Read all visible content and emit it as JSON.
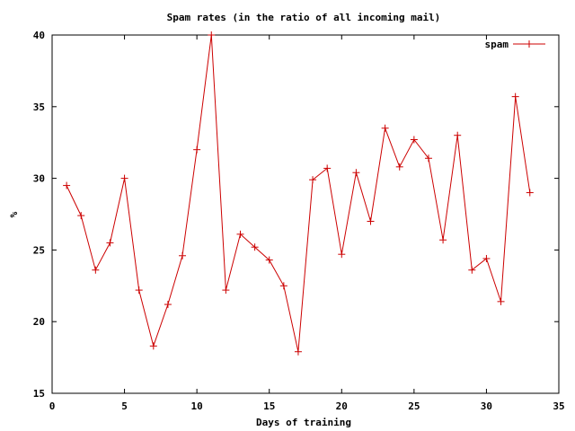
{
  "chart_data": {
    "type": "line",
    "title": "Spam rates (in the ratio of all incoming mail)",
    "xlabel": "Days of training",
    "ylabel": "%",
    "xlim": [
      0,
      35
    ],
    "ylim": [
      15,
      40
    ],
    "x_ticks": [
      "0",
      "5",
      "10",
      "15",
      "20",
      "25",
      "30",
      "35"
    ],
    "y_ticks": [
      "15",
      "20",
      "25",
      "30",
      "35",
      "40"
    ],
    "grid": false,
    "legend_position": "top-right",
    "series": [
      {
        "name": "spam",
        "color": "#cc0000",
        "marker": "plus",
        "x": [
          1,
          2,
          3,
          4,
          5,
          6,
          7,
          8,
          9,
          10,
          11,
          12,
          13,
          14,
          15,
          16,
          17,
          18,
          19,
          20,
          21,
          22,
          23,
          24,
          25,
          26,
          27,
          28,
          29,
          30,
          31,
          32,
          33
        ],
        "values": [
          29.5,
          27.4,
          23.6,
          25.5,
          30.0,
          22.2,
          18.3,
          21.2,
          24.6,
          32.0,
          40.0,
          22.2,
          26.1,
          25.2,
          24.3,
          22.5,
          17.9,
          29.9,
          30.7,
          24.7,
          30.4,
          27.0,
          33.5,
          30.8,
          32.7,
          31.4,
          25.7,
          33.0,
          23.6,
          24.4,
          21.4,
          35.7,
          29.0
        ]
      }
    ]
  }
}
